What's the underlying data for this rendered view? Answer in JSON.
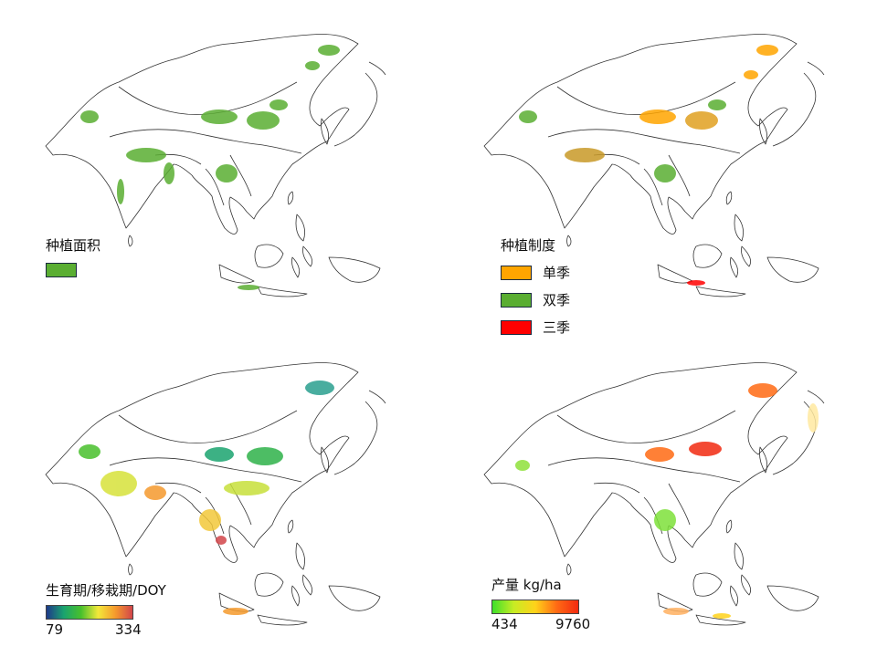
{
  "panels": {
    "area": {
      "legend_title": "种植面积",
      "legend_color": "#5aae32"
    },
    "system": {
      "legend_title": "种植制度",
      "items": [
        {
          "label": "单季",
          "color": "#ffa500"
        },
        {
          "label": "双季",
          "color": "#5aae32"
        },
        {
          "label": "三季",
          "color": "#ff0000"
        }
      ]
    },
    "doy": {
      "legend_title": "生育期/移栽期/DOY",
      "min_label": "79",
      "max_label": "334",
      "gradient": [
        "#1e3a8a",
        "#1aa36f",
        "#48c02c",
        "#f3e83a",
        "#f59a2d",
        "#d2454a"
      ]
    },
    "yield": {
      "legend_title": "产量 kg/ha",
      "min_label": "434",
      "max_label": "9760",
      "gradient": [
        "#3ee02a",
        "#c8ec24",
        "#ffd21a",
        "#ff6a14",
        "#f22a10"
      ]
    }
  }
}
